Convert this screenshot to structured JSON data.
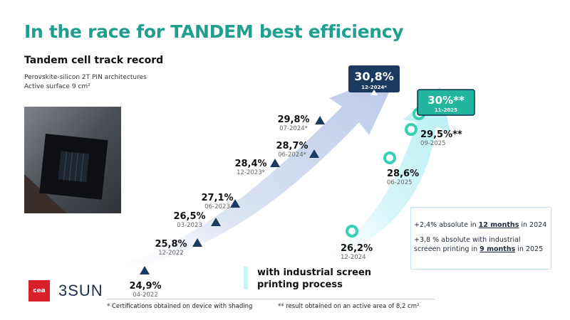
{
  "title": "In the race for TANDEM best efficiency",
  "subtitle": "Tandem cell track record",
  "architecture": "Perovskite-silicon 2T PIN architectures",
  "surface": "Active surface 9 cm²",
  "logos": {
    "cea": "cea",
    "company": "3SUN"
  },
  "legend_label": "with industrial screen printing process",
  "notes": {
    "line1_prefix": "+2,4% absolute in ",
    "line1_em": "12 months",
    "line1_suffix": " in 2024",
    "line2_prefix": "+3,8 % absolute with industrial screeen printing in ",
    "line2_em": "9 months",
    "line2_suffix": " in 2025"
  },
  "footnotes": {
    "left": "* Certifications obtained on device with shading",
    "right": "** result obtained on an active area of 8,2 cm²"
  },
  "colors": {
    "title": "#1fa08e",
    "navy": "#1b3a5f",
    "teal": "#37d0b4",
    "arrow_blue": "#c9d6ee",
    "arrow_cyan": "#c9f3f7"
  },
  "chart_data": {
    "type": "scatter",
    "title": "Tandem cell track record",
    "series": [
      {
        "name": "Tandem cells (navy triangles)",
        "points": [
          {
            "date": "04-2022",
            "value": 24.9,
            "label": "24,9%"
          },
          {
            "date": "12-2022",
            "value": 25.8,
            "label": "25,8%"
          },
          {
            "date": "03-2023",
            "value": 26.5,
            "label": "26,5%"
          },
          {
            "date": "06-2023",
            "value": 27.1,
            "label": "27,1%"
          },
          {
            "date": "12-2023*",
            "value": 28.4,
            "label": "28,4%"
          },
          {
            "date": "06-2024*",
            "value": 28.7,
            "label": "28,7%"
          },
          {
            "date": "07-2024*",
            "value": 29.8,
            "label": "29,8%"
          },
          {
            "date": "12-2024*",
            "value": 30.8,
            "label": "30,8%"
          }
        ]
      },
      {
        "name": "with industrial screen printing process (teal circles)",
        "points": [
          {
            "date": "12-2024",
            "value": 26.2,
            "label": "26,2%"
          },
          {
            "date": "06-2025",
            "value": 28.6,
            "label": "28,6%"
          },
          {
            "date": "09-2025",
            "value": 29.5,
            "label": "29,5%**"
          },
          {
            "date": "11-2025",
            "value": 30.0,
            "label": "30%**"
          }
        ]
      }
    ]
  }
}
